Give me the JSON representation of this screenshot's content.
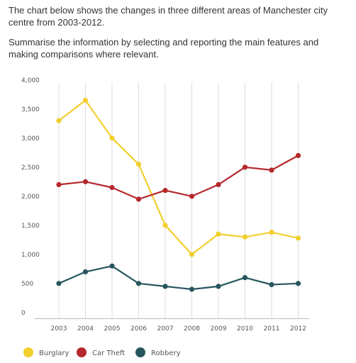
{
  "prompt": {
    "line1": "The chart below shows the changes in three different areas of Manchester city centre from 2003-2012.",
    "line2": "Summarise the information by selecting and reporting the main features and making comparisons where relevant."
  },
  "chart_data": {
    "type": "line",
    "title": "",
    "xlabel": "",
    "ylabel": "",
    "x": [
      "2003",
      "2004",
      "2005",
      "2006",
      "2007",
      "2008",
      "2009",
      "2010",
      "2011",
      "2012"
    ],
    "ylim": [
      0,
      4000
    ],
    "yticks": [
      0,
      500,
      1000,
      1500,
      2000,
      2500,
      3000,
      3500,
      4000
    ],
    "ytick_labels": [
      "0",
      "500",
      "1,000",
      "1,500",
      "2,000",
      "2,500",
      "3,000",
      "3,500",
      "4,000"
    ],
    "grid": "vertical",
    "legend_position": "bottom-left",
    "series": [
      {
        "name": "Burglary",
        "color": "#f2cf2e",
        "values": [
          3400,
          3750,
          3100,
          2650,
          1600,
          1100,
          1450,
          1400,
          1480,
          1380
        ]
      },
      {
        "name": "Car Theft",
        "color": "#b5282b",
        "values": [
          2300,
          2350,
          2250,
          2050,
          2200,
          2100,
          2300,
          2600,
          2550,
          2800
        ]
      },
      {
        "name": "Robbery",
        "color": "#27565e",
        "values": [
          600,
          800,
          900,
          600,
          550,
          500,
          550,
          700,
          580,
          600
        ]
      }
    ]
  }
}
